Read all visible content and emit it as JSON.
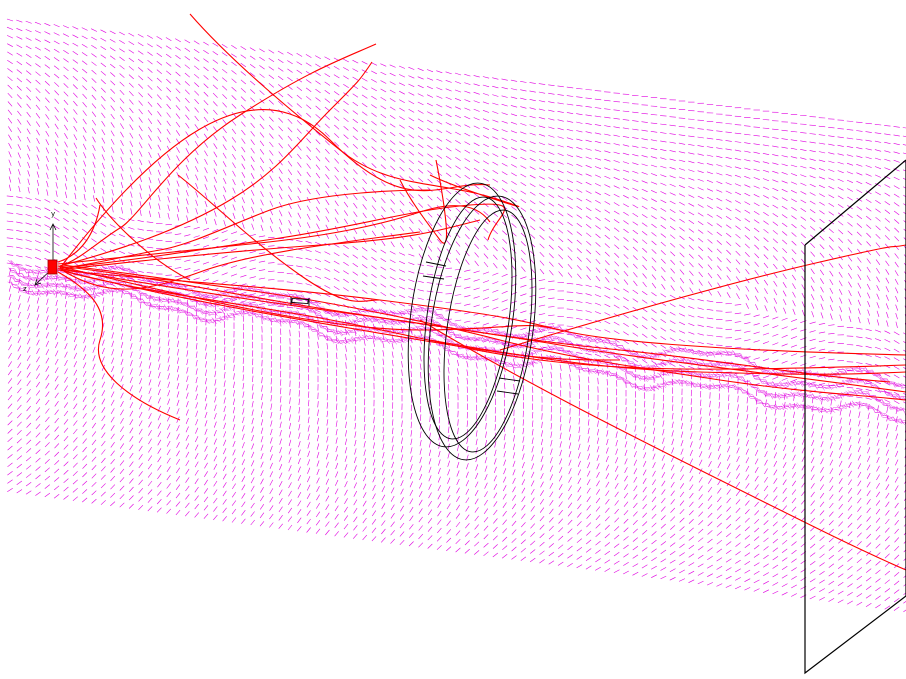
{
  "scene": {
    "background_color": "#ffffff",
    "field_vector_color": "#e000e0",
    "trajectory_color": "#ff0000",
    "geometry_color": "#000000",
    "axis_triad": {
      "labels": {
        "y": "y",
        "z": "z"
      }
    },
    "objects": {
      "field_slice": "vector-field-plane",
      "trajectories": "particle-tracks",
      "ring_detector": "toroidal-coil",
      "small_target": "target-rod",
      "screen": "detector-plane"
    }
  }
}
